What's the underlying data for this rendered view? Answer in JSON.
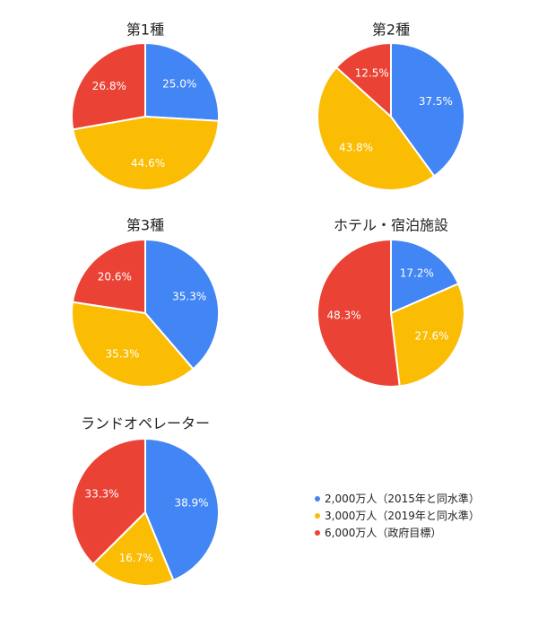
{
  "chart_data": [
    {
      "type": "pie",
      "title": "第1種",
      "categories": [
        "2,000万人（2015年と同水準）",
        "3,000万人（2019年と同水準）",
        "6,000万人（政府目標）"
      ],
      "values": [
        25.0,
        44.6,
        26.8
      ],
      "labels": [
        "25.0%",
        "44.6%",
        "26.8%"
      ]
    },
    {
      "type": "pie",
      "title": "第2種",
      "categories": [
        "2,000万人（2015年と同水準）",
        "3,000万人（2019年と同水準）",
        "6,000万人（政府目標）"
      ],
      "values": [
        37.5,
        43.8,
        12.5
      ],
      "labels": [
        "37.5%",
        "43.8%",
        "12.5%"
      ]
    },
    {
      "type": "pie",
      "title": "第3種",
      "categories": [
        "2,000万人（2015年と同水準）",
        "3,000万人（2019年と同水準）",
        "6,000万人（政府目標）"
      ],
      "values": [
        35.3,
        35.3,
        20.6
      ],
      "labels": [
        "35.3%",
        "35.3%",
        "20.6%"
      ]
    },
    {
      "type": "pie",
      "title": "ホテル・宿泊施設",
      "categories": [
        "2,000万人（2015年と同水準）",
        "3,000万人（2019年と同水準）",
        "6,000万人（政府目標）"
      ],
      "values": [
        17.2,
        27.6,
        48.3
      ],
      "labels": [
        "17.2%",
        "27.6%",
        "48.3%"
      ]
    },
    {
      "type": "pie",
      "title": "ランドオペレーター",
      "categories": [
        "2,000万人（2015年と同水準）",
        "3,000万人（2019年と同水準）",
        "6,000万人（政府目標）"
      ],
      "values": [
        38.9,
        16.7,
        33.3
      ],
      "labels": [
        "38.9%",
        "16.7%",
        "33.3%"
      ]
    }
  ],
  "legend": {
    "items": [
      {
        "label": "2,000万人（2015年と同水準）",
        "color": "#4285f4"
      },
      {
        "label": "3,000万人（2019年と同水準）",
        "color": "#fbbc04"
      },
      {
        "label": "6,000万人（政府目標）",
        "color": "#ea4335"
      }
    ]
  }
}
